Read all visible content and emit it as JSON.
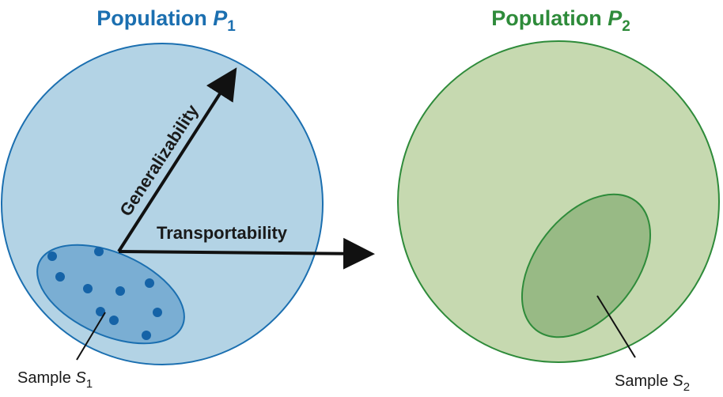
{
  "population1": {
    "title": "Population ",
    "symbol": "P",
    "subscript": "1",
    "color": "#1b6fb0",
    "fill": "#b3d3e5",
    "sample": {
      "label": "Sample ",
      "symbol": "S",
      "subscript": "1",
      "fill": "#7aaed3",
      "dot_color": "#1563a7",
      "dot_count": 10
    }
  },
  "population2": {
    "title": "Population ",
    "symbol": "P",
    "subscript": "2",
    "color": "#2e8b3a",
    "fill": "#c6d9b0",
    "sample": {
      "label": "Sample ",
      "symbol": "S",
      "subscript": "2",
      "fill": "#98ba85"
    }
  },
  "arrows": {
    "generalizability": "Generalizability",
    "transportability": "Transportability"
  }
}
